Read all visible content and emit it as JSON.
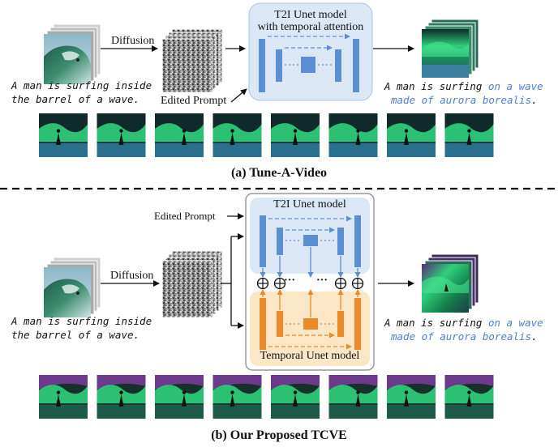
{
  "colors": {
    "unet_blue": "#5b8fd1",
    "unet_box_bg": "#dce8f6",
    "temporal_orange": "#ea8a2b",
    "temporal_box_bg": "#fbe6c6",
    "text_blue": "#4f7fd0",
    "aurora_green": "#2ecc71",
    "aurora_purple": "#8e44ad",
    "sea_blue": "#2f6f8f"
  },
  "top": {
    "diffusion_label": "Diffusion",
    "model_title_line1": "T2I Unet model",
    "model_title_line2": "with temporal attention",
    "edited_prompt": "Edited Prompt",
    "source_caption_line1": "A man is surfing inside",
    "source_caption_line2": "the barrel of a wave.",
    "target_caption_plain": "A man is surfing ",
    "target_caption_blue_1": "on a wave",
    "target_caption_blue_2": "made of aurora borealis",
    "target_caption_end": ".",
    "section_caption": "(a) Tune-A-Video",
    "frame_count": 8
  },
  "bottom": {
    "edited_prompt": "Edited Prompt",
    "diffusion_label": "Diffusion",
    "t2i_title": "T2I Unet model",
    "temporal_title": "Temporal Unet model",
    "dots": "···",
    "source_caption_line1": "A man is surfing inside",
    "source_caption_line2": "the barrel of a wave.",
    "target_caption_plain": "A man is surfing ",
    "target_caption_blue_1": "on a wave",
    "target_caption_blue_2": "made of aurora borealis",
    "target_caption_end": ".",
    "section_caption": "(b) Our Proposed TCVE",
    "frame_count": 8
  },
  "icons": {
    "source_video": "surfing-wave-video-stack-icon",
    "noise": "noise-latent-stack-icon",
    "output_video": "aurora-video-stack-icon",
    "sum": "circled-plus-icon"
  }
}
